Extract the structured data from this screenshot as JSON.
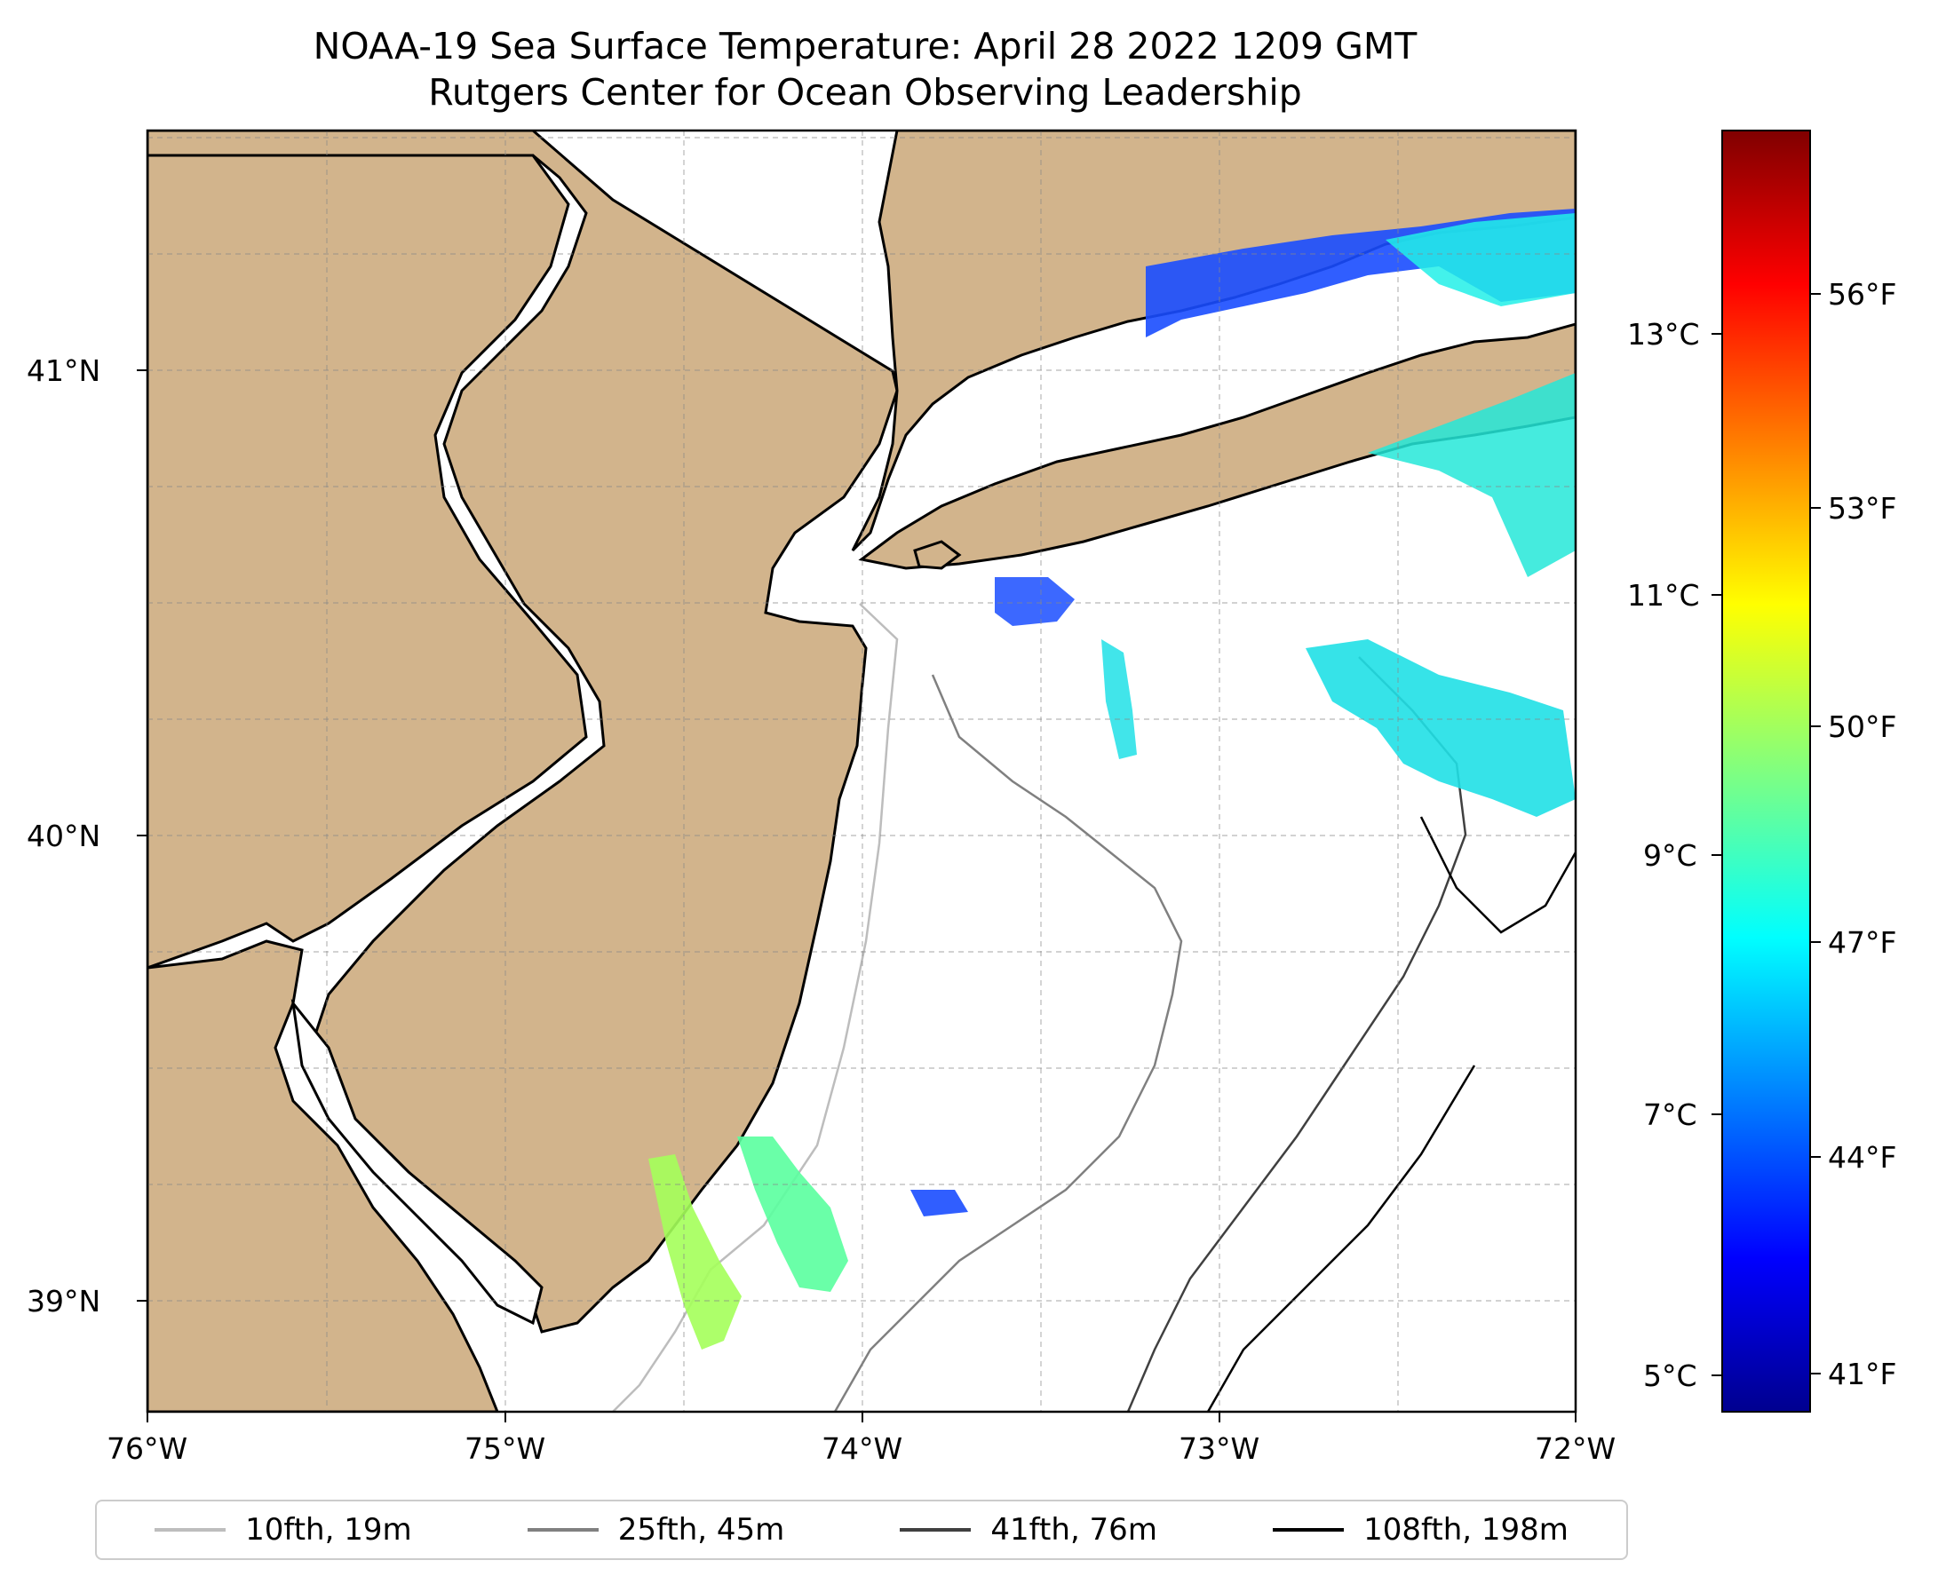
{
  "title_line1": "NOAA-19 Sea Surface Temperature: April 28 2022 1209 GMT",
  "title_line2": "Rutgers Center for Ocean Observing Leadership",
  "map": {
    "lon_range": [
      -76,
      -72
    ],
    "lat_range": [
      38.75,
      41.5
    ],
    "lon_ticks": [
      "76°W",
      "75°W",
      "74°W",
      "73°W",
      "72°W"
    ],
    "lat_ticks": [
      "41°N",
      "40°N",
      "39°N"
    ],
    "land_color": "#d2b48c",
    "ocean_color": "#ffffff",
    "gridlines": true
  },
  "colorbar": {
    "colormap": "jet",
    "celsius_ticks": [
      "13°C",
      "11°C",
      "9°C",
      "7°C",
      "5°C"
    ],
    "fahrenheit_ticks": [
      "56°F",
      "53°F",
      "50°F",
      "47°F",
      "44°F",
      "41°F"
    ]
  },
  "legend": {
    "items": [
      {
        "label": "10fth, 19m",
        "color": "#bdbdbd"
      },
      {
        "label": "25fth, 45m",
        "color": "#808080"
      },
      {
        "label": "41fth, 76m",
        "color": "#404040"
      },
      {
        "label": "108fth, 198m",
        "color": "#000000"
      }
    ]
  }
}
